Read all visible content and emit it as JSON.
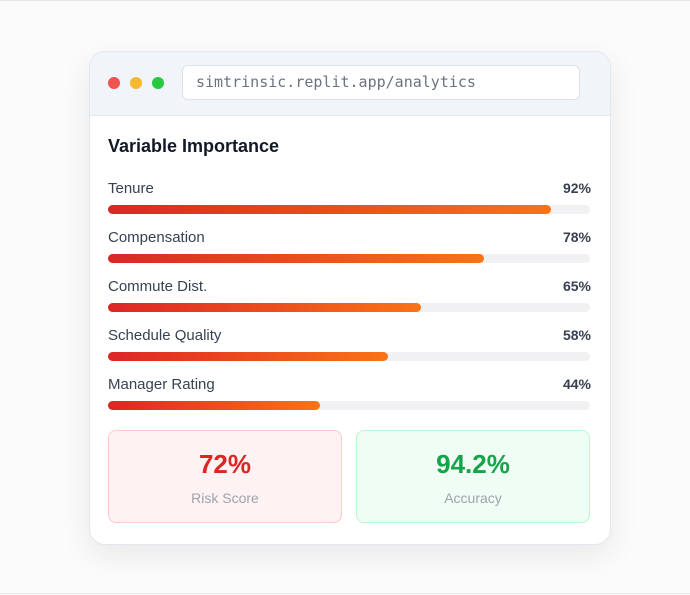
{
  "browser": {
    "url": "simtrinsic.replit.app/analytics"
  },
  "panel": {
    "title": "Variable Importance",
    "xlim": [
      0,
      100
    ],
    "items": [
      {
        "label": "Tenure",
        "value": 92,
        "value_label": "92%"
      },
      {
        "label": "Compensation",
        "value": 78,
        "value_label": "78%"
      },
      {
        "label": "Commute Dist.",
        "value": 65,
        "value_label": "65%"
      },
      {
        "label": "Schedule Quality",
        "value": 58,
        "value_label": "58%"
      },
      {
        "label": "Manager Rating",
        "value": 44,
        "value_label": "44%"
      }
    ]
  },
  "metrics": [
    {
      "value": "72%",
      "label": "Risk Score"
    },
    {
      "value": "94.2%",
      "label": "Accuracy"
    }
  ]
}
